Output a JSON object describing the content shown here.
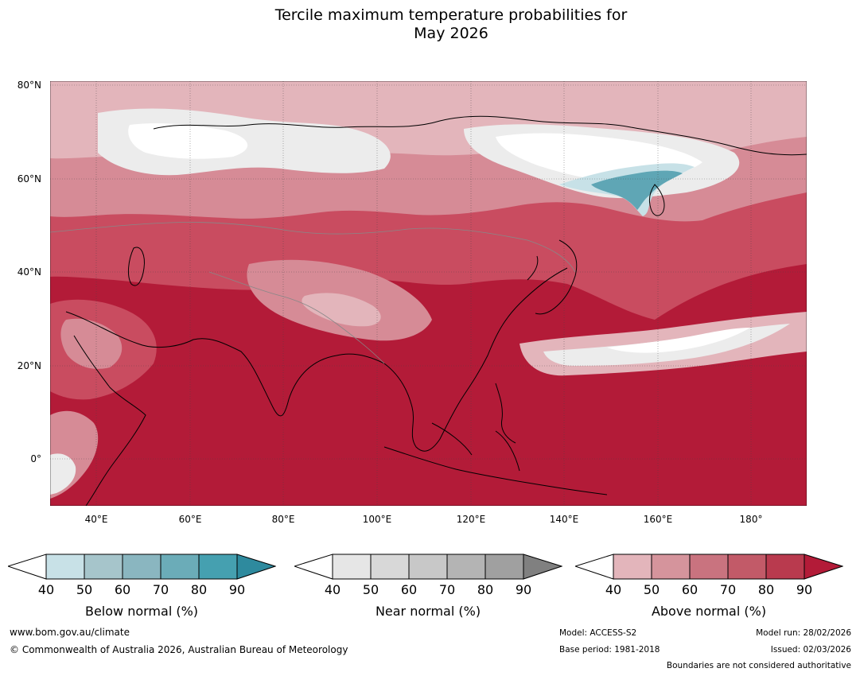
{
  "title_line1": "Tercile maximum temperature probabilities for",
  "title_line2": "May 2026",
  "map": {
    "lat_labels": [
      "80°N",
      "60°N",
      "40°N",
      "20°N",
      "0°"
    ],
    "lon_labels": [
      "40°E",
      "60°E",
      "80°E",
      "100°E",
      "120°E",
      "140°E",
      "160°E",
      "180°"
    ],
    "colors": {
      "ocean_warm": "#b31b38",
      "land_warm": "#c94c60",
      "mid_warm": "#d68b96",
      "light_warm": "#e3b5bb",
      "near_grey": "#e0e0e0",
      "below_blue": "#5fa6b5",
      "light_blue": "#c7e1e7",
      "coast": "#000000",
      "border": "#888888"
    }
  },
  "colorbars": [
    {
      "name": "below",
      "label": "Below normal (%)",
      "ticks": [
        "40",
        "50",
        "60",
        "70",
        "80",
        "90"
      ],
      "colors": [
        "#c8e1e7",
        "#a6c5cb",
        "#8ab6c0",
        "#6bacb8",
        "#45a0b0",
        "#2e8a9e"
      ]
    },
    {
      "name": "near",
      "label": "Near normal (%)",
      "ticks": [
        "40",
        "50",
        "60",
        "70",
        "80",
        "90"
      ],
      "colors": [
        "#e6e6e6",
        "#d8d8d8",
        "#c8c8c8",
        "#b4b4b4",
        "#a0a0a0",
        "#808080"
      ]
    },
    {
      "name": "above",
      "label": "Above normal (%)",
      "ticks": [
        "40",
        "50",
        "60",
        "70",
        "80",
        "90"
      ],
      "colors": [
        "#e3b5bb",
        "#d5949c",
        "#c9737f",
        "#c25a68",
        "#b93a4e",
        "#b31b38"
      ]
    }
  ],
  "footer": {
    "url": "www.bom.gov.au/climate",
    "copyright": "© Commonwealth of Australia 2026, Australian Bureau of Meteorology",
    "model": "Model: ACCESS-S2",
    "base_period": "Base period: 1981-2018",
    "model_run": "Model run: 28/02/2026",
    "issued": "Issued: 02/03/2026",
    "disclaimer": "Boundaries are not considered authoritative"
  }
}
